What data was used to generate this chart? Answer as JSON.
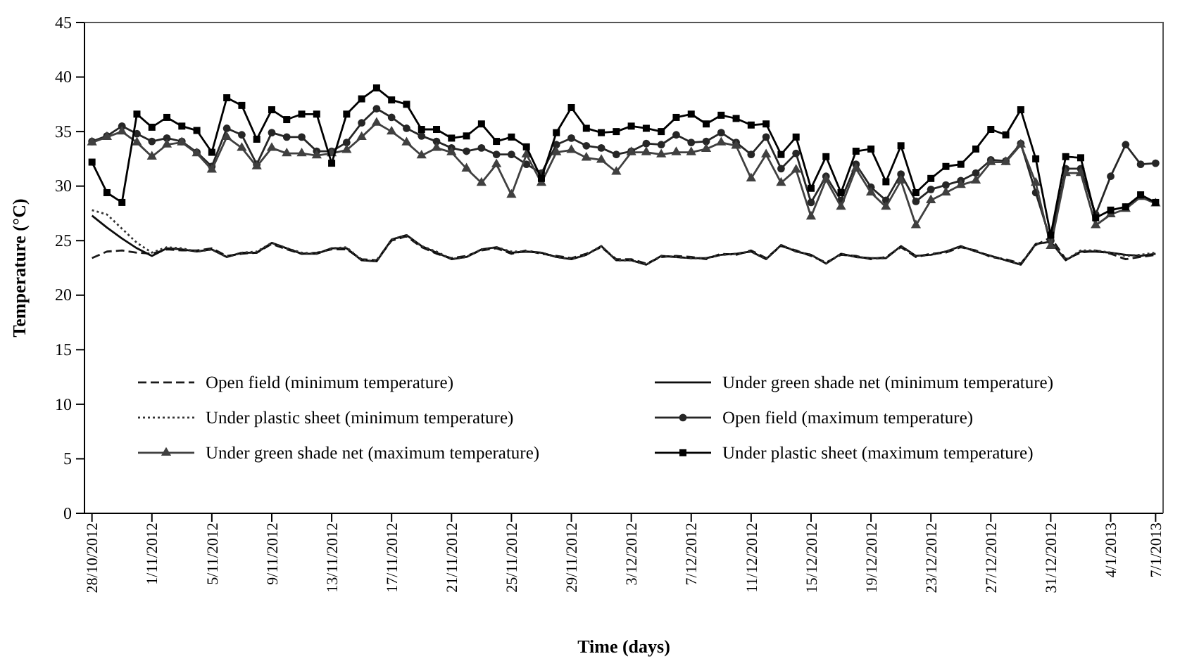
{
  "chart_data": {
    "type": "line",
    "xlabel": "Time (days)",
    "ylabel": "Temperature (°C)",
    "categories": [
      "28/10/2012",
      null,
      null,
      null,
      "1/11/2012",
      null,
      null,
      null,
      "5/11/2012",
      null,
      null,
      null,
      "9/11/2012",
      null,
      null,
      null,
      "13/11/2012",
      null,
      null,
      null,
      "17/11/2012",
      null,
      null,
      null,
      "21/11/2012",
      null,
      null,
      null,
      "25/11/2012",
      null,
      null,
      null,
      "29/11/2012",
      null,
      null,
      null,
      "3/12/2012",
      null,
      null,
      null,
      "7/12/2012",
      null,
      null,
      null,
      "11/12/2012",
      null,
      null,
      null,
      "15/12/2012",
      null,
      null,
      null,
      "19/12/2012",
      null,
      null,
      null,
      "23/12/2012",
      null,
      null,
      null,
      "27/12/2012",
      null,
      null,
      null,
      "31/12/2012",
      null,
      null,
      null,
      "4/1/2013",
      null,
      null,
      "7/1/2013"
    ],
    "ylim": [
      0,
      45
    ],
    "yticks": [
      0,
      5,
      10,
      15,
      20,
      25,
      30,
      35,
      40,
      45
    ],
    "grid": false,
    "legend": "bottom",
    "series": [
      {
        "name": "Open field (minimum temperature)",
        "color": "#1a1a1a",
        "line_style": "dashed",
        "marker": "none",
        "values": [
          23.4,
          24.0,
          24.1,
          23.9,
          23.8,
          24.2,
          24.1,
          24.1,
          24.3,
          23.6,
          23.8,
          23.9,
          24.7,
          24.2,
          23.8,
          23.9,
          24.2,
          24.2,
          23.3,
          23.2,
          25.0,
          25.4,
          24.4,
          23.8,
          23.4,
          23.6,
          24.1,
          24.3,
          23.8,
          24.1,
          23.8,
          23.6,
          23.4,
          23.8,
          24.4,
          23.3,
          23.3,
          22.9,
          23.5,
          23.6,
          23.5,
          23.3,
          23.8,
          23.7,
          24.1,
          23.4,
          24.5,
          24.1,
          23.6,
          23.0,
          23.7,
          23.6,
          23.3,
          23.5,
          24.4,
          23.5,
          23.8,
          23.9,
          24.4,
          24.1,
          23.5,
          23.3,
          22.9,
          24.6,
          25.3,
          23.3,
          23.9,
          24.1,
          23.8,
          23.3,
          23.5,
          23.7
        ]
      },
      {
        "name": "Under green shade net (minimum temperature)",
        "color": "#0d0d0d",
        "line_style": "solid",
        "marker": "none",
        "values": [
          27.3,
          26.2,
          25.2,
          24.3,
          23.6,
          24.3,
          24.2,
          24.0,
          24.2,
          23.5,
          23.9,
          23.9,
          24.8,
          24.3,
          23.8,
          23.8,
          24.3,
          24.3,
          23.2,
          23.1,
          25.1,
          25.5,
          24.5,
          23.9,
          23.3,
          23.5,
          24.2,
          24.4,
          23.9,
          24.0,
          23.9,
          23.5,
          23.3,
          23.7,
          24.5,
          23.2,
          23.2,
          22.8,
          23.6,
          23.5,
          23.4,
          23.4,
          23.7,
          23.8,
          24.0,
          23.3,
          24.6,
          24.0,
          23.7,
          22.9,
          23.8,
          23.5,
          23.4,
          23.4,
          24.5,
          23.6,
          23.7,
          24.0,
          24.5,
          24.0,
          23.6,
          23.2,
          22.8,
          24.7,
          24.9,
          23.2,
          24.0,
          24.0,
          23.9,
          23.7,
          23.6,
          23.8
        ]
      },
      {
        "name": "Under plastic sheet (minimum temperature)",
        "color": "#333333",
        "line_style": "dotted",
        "marker": "none",
        "values": [
          27.8,
          27.4,
          26.1,
          24.8,
          23.9,
          24.4,
          24.3,
          24.0,
          24.2,
          23.5,
          23.9,
          24.0,
          24.8,
          24.3,
          23.9,
          23.8,
          24.3,
          24.4,
          23.2,
          23.1,
          25.1,
          25.5,
          24.5,
          24.0,
          23.3,
          23.5,
          24.2,
          24.4,
          24.0,
          24.0,
          23.9,
          23.5,
          23.3,
          23.7,
          24.5,
          23.2,
          23.2,
          22.8,
          23.6,
          23.5,
          23.4,
          23.4,
          23.7,
          23.8,
          24.0,
          23.3,
          24.6,
          24.0,
          23.7,
          22.9,
          23.8,
          23.5,
          23.4,
          23.4,
          24.5,
          23.6,
          23.7,
          24.0,
          24.5,
          24.0,
          23.6,
          23.2,
          22.8,
          24.7,
          24.9,
          23.2,
          24.1,
          24.1,
          23.9,
          23.6,
          23.7,
          23.9
        ]
      },
      {
        "name": "Open field (maximum temperature)",
        "color": "#262626",
        "line_style": "solid",
        "marker": "circle",
        "values": [
          34.1,
          34.6,
          35.5,
          34.8,
          34.1,
          34.4,
          34.1,
          33.1,
          31.8,
          35.3,
          34.7,
          32.0,
          34.9,
          34.5,
          34.5,
          33.2,
          33.2,
          34.0,
          35.8,
          37.1,
          36.3,
          35.3,
          34.6,
          34.1,
          33.5,
          33.2,
          33.5,
          32.9,
          32.9,
          32.0,
          31.2,
          33.8,
          34.4,
          33.7,
          33.5,
          32.9,
          33.2,
          33.9,
          33.8,
          34.7,
          34.0,
          34.1,
          34.9,
          34.0,
          32.9,
          34.5,
          31.6,
          33.0,
          28.5,
          30.9,
          28.7,
          32.0,
          29.9,
          28.7,
          31.1,
          28.6,
          29.7,
          30.1,
          30.5,
          31.2,
          32.4,
          32.3,
          33.9,
          29.4,
          25.0,
          31.6,
          31.6,
          27.4,
          30.9,
          33.8,
          32.0,
          32.1
        ]
      },
      {
        "name": "Under green shade net (maximum temperature)",
        "color": "#404040",
        "line_style": "solid",
        "marker": "triangle",
        "values": [
          34.0,
          34.5,
          35.0,
          34.0,
          32.7,
          33.8,
          34.0,
          33.0,
          31.5,
          34.5,
          33.5,
          31.8,
          33.5,
          33.0,
          33.0,
          32.8,
          33.0,
          33.3,
          34.5,
          35.8,
          35.0,
          34.0,
          32.8,
          33.5,
          33.1,
          31.6,
          30.3,
          32.0,
          29.2,
          32.9,
          30.3,
          33.1,
          33.3,
          32.6,
          32.4,
          31.3,
          33.1,
          33.1,
          32.9,
          33.1,
          33.1,
          33.4,
          34.0,
          33.7,
          30.7,
          32.9,
          30.3,
          31.5,
          27.2,
          30.6,
          28.1,
          31.6,
          29.4,
          28.1,
          30.5,
          26.4,
          28.7,
          29.4,
          30.1,
          30.5,
          32.2,
          32.2,
          33.8,
          30.3,
          24.5,
          31.2,
          31.2,
          26.4,
          27.4,
          27.9,
          29.0,
          28.4
        ]
      },
      {
        "name": "Under plastic sheet (maximum temperature)",
        "color": "#000000",
        "line_style": "solid",
        "marker": "square",
        "values": [
          32.2,
          29.4,
          28.5,
          36.6,
          35.4,
          36.3,
          35.5,
          35.1,
          33.1,
          38.1,
          37.4,
          34.3,
          37.0,
          36.1,
          36.6,
          36.6,
          32.1,
          36.6,
          38.0,
          39.0,
          37.9,
          37.5,
          35.2,
          35.2,
          34.4,
          34.6,
          35.7,
          34.1,
          34.5,
          33.6,
          30.7,
          34.9,
          37.2,
          35.3,
          34.9,
          35.0,
          35.5,
          35.3,
          35.0,
          36.3,
          36.6,
          35.7,
          36.5,
          36.2,
          35.6,
          35.7,
          32.9,
          34.5,
          29.8,
          32.7,
          29.4,
          33.2,
          33.4,
          30.4,
          33.7,
          29.4,
          30.7,
          31.8,
          32.0,
          33.4,
          35.2,
          34.7,
          37.0,
          32.5,
          25.5,
          32.7,
          32.6,
          27.1,
          27.8,
          28.1,
          29.2,
          28.5
        ]
      }
    ]
  }
}
